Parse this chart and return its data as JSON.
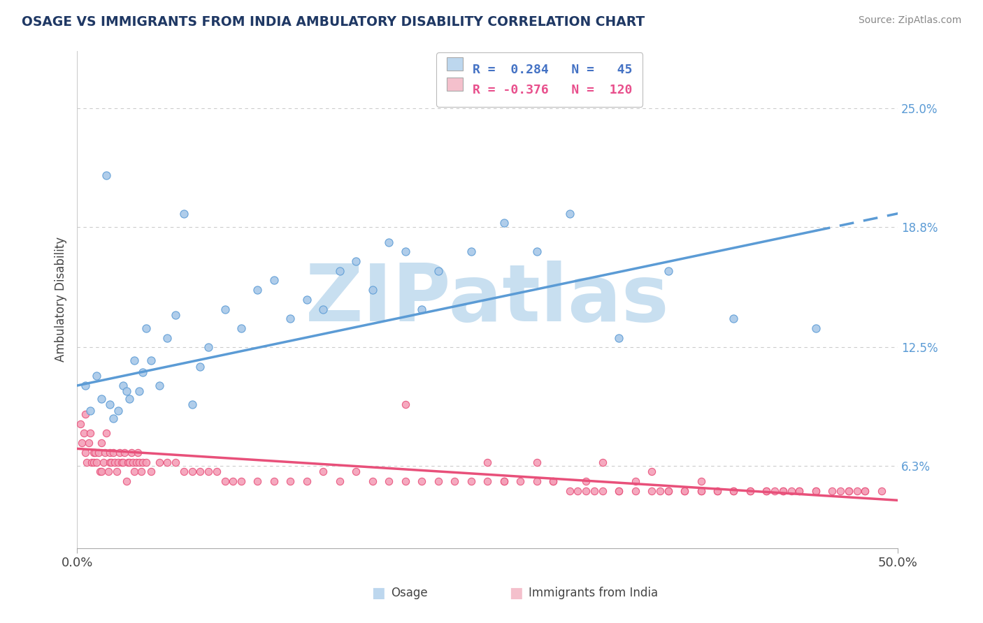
{
  "title": "OSAGE VS IMMIGRANTS FROM INDIA AMBULATORY DISABILITY CORRELATION CHART",
  "source_text": "Source: ZipAtlas.com",
  "ylabel": "Ambulatory Disability",
  "xmin": 0.0,
  "xmax": 50.0,
  "ymin": 2.0,
  "ymax": 28.0,
  "yticks": [
    6.3,
    12.5,
    18.8,
    25.0
  ],
  "ytick_labels": [
    "6.3%",
    "12.5%",
    "18.8%",
    "25.0%"
  ],
  "xticks": [
    0.0,
    50.0
  ],
  "xtick_labels": [
    "0.0%",
    "50.0%"
  ],
  "color_blue_scatter": "#a8c8e8",
  "color_blue_edge": "#5b9bd5",
  "color_blue_line": "#5b9bd5",
  "color_blue_legend": "#bdd7ee",
  "color_pink_scatter": "#f4a0b8",
  "color_pink_edge": "#e8507a",
  "color_pink_line": "#e8507a",
  "color_pink_legend": "#f4c0cc",
  "color_title": "#1f3864",
  "color_legend_text_blue": "#4472c4",
  "color_legend_text_pink": "#e84f8c",
  "watermark_text": "ZIPatlas",
  "watermark_color": "#c8dff0",
  "background_color": "#ffffff",
  "grid_color": "#cccccc",
  "osage_x": [
    0.5,
    0.8,
    1.2,
    1.5,
    1.8,
    2.0,
    2.2,
    2.5,
    2.8,
    3.0,
    3.2,
    3.5,
    3.8,
    4.0,
    4.2,
    4.5,
    5.0,
    5.5,
    6.0,
    6.5,
    7.0,
    7.5,
    8.0,
    9.0,
    10.0,
    11.0,
    12.0,
    13.0,
    14.0,
    15.0,
    16.0,
    17.0,
    18.0,
    19.0,
    20.0,
    21.0,
    22.0,
    24.0,
    26.0,
    28.0,
    30.0,
    33.0,
    36.0,
    40.0,
    45.0
  ],
  "osage_y": [
    10.5,
    9.2,
    11.0,
    9.8,
    21.5,
    9.5,
    8.8,
    9.2,
    10.5,
    10.2,
    9.8,
    11.8,
    10.2,
    11.2,
    13.5,
    11.8,
    10.5,
    13.0,
    14.2,
    19.5,
    9.5,
    11.5,
    12.5,
    14.5,
    13.5,
    15.5,
    16.0,
    14.0,
    15.0,
    14.5,
    16.5,
    17.0,
    15.5,
    18.0,
    17.5,
    14.5,
    16.5,
    17.5,
    19.0,
    17.5,
    19.5,
    13.0,
    16.5,
    14.0,
    13.5
  ],
  "india_x": [
    0.2,
    0.3,
    0.4,
    0.5,
    0.5,
    0.6,
    0.7,
    0.8,
    0.9,
    1.0,
    1.0,
    1.1,
    1.2,
    1.3,
    1.4,
    1.5,
    1.5,
    1.6,
    1.7,
    1.8,
    1.9,
    2.0,
    2.0,
    2.1,
    2.2,
    2.3,
    2.4,
    2.5,
    2.6,
    2.7,
    2.8,
    2.9,
    3.0,
    3.1,
    3.2,
    3.3,
    3.4,
    3.5,
    3.6,
    3.7,
    3.8,
    3.9,
    4.0,
    4.2,
    4.5,
    5.0,
    5.5,
    6.0,
    6.5,
    7.0,
    7.5,
    8.0,
    8.5,
    9.0,
    9.5,
    10.0,
    11.0,
    12.0,
    13.0,
    14.0,
    15.0,
    16.0,
    17.0,
    18.0,
    19.0,
    20.0,
    21.0,
    22.0,
    23.0,
    24.0,
    25.0,
    26.0,
    27.0,
    28.0,
    29.0,
    30.0,
    31.0,
    32.0,
    33.0,
    34.0,
    35.0,
    36.0,
    37.0,
    38.0,
    39.0,
    40.0,
    41.0,
    42.0,
    43.0,
    44.0,
    45.0,
    46.0,
    47.0,
    48.0,
    49.0,
    20.0,
    25.0,
    28.0,
    32.0,
    35.0,
    38.0,
    42.0,
    45.0,
    48.0,
    31.0,
    36.0,
    40.0,
    44.0,
    29.0,
    33.0,
    38.0,
    43.0,
    47.0,
    34.0,
    39.0,
    43.5,
    47.5,
    26.0,
    31.5,
    37.0,
    42.5,
    46.5,
    30.5,
    35.5,
    41.0
  ],
  "india_y": [
    8.5,
    7.5,
    8.0,
    9.0,
    7.0,
    6.5,
    7.5,
    8.0,
    6.5,
    7.0,
    6.5,
    7.0,
    6.5,
    7.0,
    6.0,
    7.5,
    6.0,
    6.5,
    7.0,
    8.0,
    6.0,
    6.5,
    7.0,
    6.5,
    7.0,
    6.5,
    6.0,
    6.5,
    7.0,
    6.5,
    6.5,
    7.0,
    5.5,
    6.5,
    6.5,
    7.0,
    6.5,
    6.0,
    6.5,
    7.0,
    6.5,
    6.0,
    6.5,
    6.5,
    6.0,
    6.5,
    6.5,
    6.5,
    6.0,
    6.0,
    6.0,
    6.0,
    6.0,
    5.5,
    5.5,
    5.5,
    5.5,
    5.5,
    5.5,
    5.5,
    6.0,
    5.5,
    6.0,
    5.5,
    5.5,
    5.5,
    5.5,
    5.5,
    5.5,
    5.5,
    5.5,
    5.5,
    5.5,
    5.5,
    5.5,
    5.0,
    5.0,
    5.0,
    5.0,
    5.0,
    5.0,
    5.0,
    5.0,
    5.0,
    5.0,
    5.0,
    5.0,
    5.0,
    5.0,
    5.0,
    5.0,
    5.0,
    5.0,
    5.0,
    5.0,
    9.5,
    6.5,
    6.5,
    6.5,
    6.0,
    5.5,
    5.0,
    5.0,
    5.0,
    5.5,
    5.0,
    5.0,
    5.0,
    5.5,
    5.0,
    5.0,
    5.0,
    5.0,
    5.5,
    5.0,
    5.0,
    5.0,
    5.5,
    5.0,
    5.0,
    5.0,
    5.0,
    5.0,
    5.0,
    5.0
  ],
  "osage_line_x0": 0.0,
  "osage_line_y0": 10.5,
  "osage_line_x1": 50.0,
  "osage_line_y1": 19.5,
  "osage_dash_start": 45.0,
  "india_line_x0": 0.0,
  "india_line_y0": 7.2,
  "india_line_x1": 50.0,
  "india_line_y1": 4.5
}
